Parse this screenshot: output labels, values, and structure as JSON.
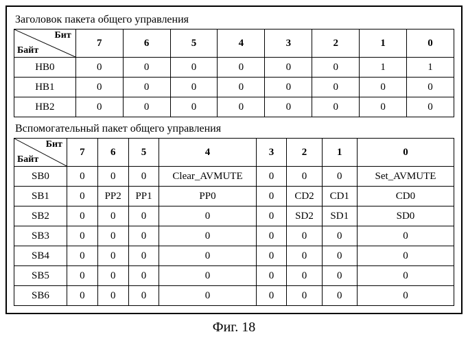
{
  "table1": {
    "title": "Заголовок пакета общего управления",
    "corner_top": "Бит",
    "corner_bottom": "Байт",
    "col_widths": [
      "14%",
      "10.75%",
      "10.75%",
      "10.75%",
      "10.75%",
      "10.75%",
      "10.75%",
      "10.75%",
      "10.75%"
    ],
    "columns": [
      "7",
      "6",
      "5",
      "4",
      "3",
      "2",
      "1",
      "0"
    ],
    "rows": [
      {
        "label": "HB0",
        "cells": [
          "0",
          "0",
          "0",
          "0",
          "0",
          "0",
          "1",
          "1"
        ]
      },
      {
        "label": "HB1",
        "cells": [
          "0",
          "0",
          "0",
          "0",
          "0",
          "0",
          "0",
          "0"
        ]
      },
      {
        "label": "HB2",
        "cells": [
          "0",
          "0",
          "0",
          "0",
          "0",
          "0",
          "0",
          "0"
        ]
      }
    ]
  },
  "table2": {
    "title": "Вспомогательный пакет общего управления",
    "corner_top": "Бит",
    "corner_bottom": "Байт",
    "col_widths": [
      "12%",
      "7%",
      "7%",
      "7%",
      "22%",
      "7%",
      "8%",
      "8%",
      "22%"
    ],
    "columns": [
      "7",
      "6",
      "5",
      "4",
      "3",
      "2",
      "1",
      "0"
    ],
    "rows": [
      {
        "label": "SB0",
        "cells": [
          "0",
          "0",
          "0",
          "Clear_AVMUTE",
          "0",
          "0",
          "0",
          "Set_AVMUTE"
        ]
      },
      {
        "label": "SB1",
        "cells": [
          "0",
          "PP2",
          "PP1",
          "PP0",
          "0",
          "CD2",
          "CD1",
          "CD0"
        ]
      },
      {
        "label": "SB2",
        "cells": [
          "0",
          "0",
          "0",
          "0",
          "0",
          "SD2",
          "SD1",
          "SD0"
        ]
      },
      {
        "label": "SB3",
        "cells": [
          "0",
          "0",
          "0",
          "0",
          "0",
          "0",
          "0",
          "0"
        ]
      },
      {
        "label": "SB4",
        "cells": [
          "0",
          "0",
          "0",
          "0",
          "0",
          "0",
          "0",
          "0"
        ]
      },
      {
        "label": "SB5",
        "cells": [
          "0",
          "0",
          "0",
          "0",
          "0",
          "0",
          "0",
          "0"
        ]
      },
      {
        "label": "SB6",
        "cells": [
          "0",
          "0",
          "0",
          "0",
          "0",
          "0",
          "0",
          "0"
        ]
      }
    ]
  },
  "caption": "Фиг. 18"
}
